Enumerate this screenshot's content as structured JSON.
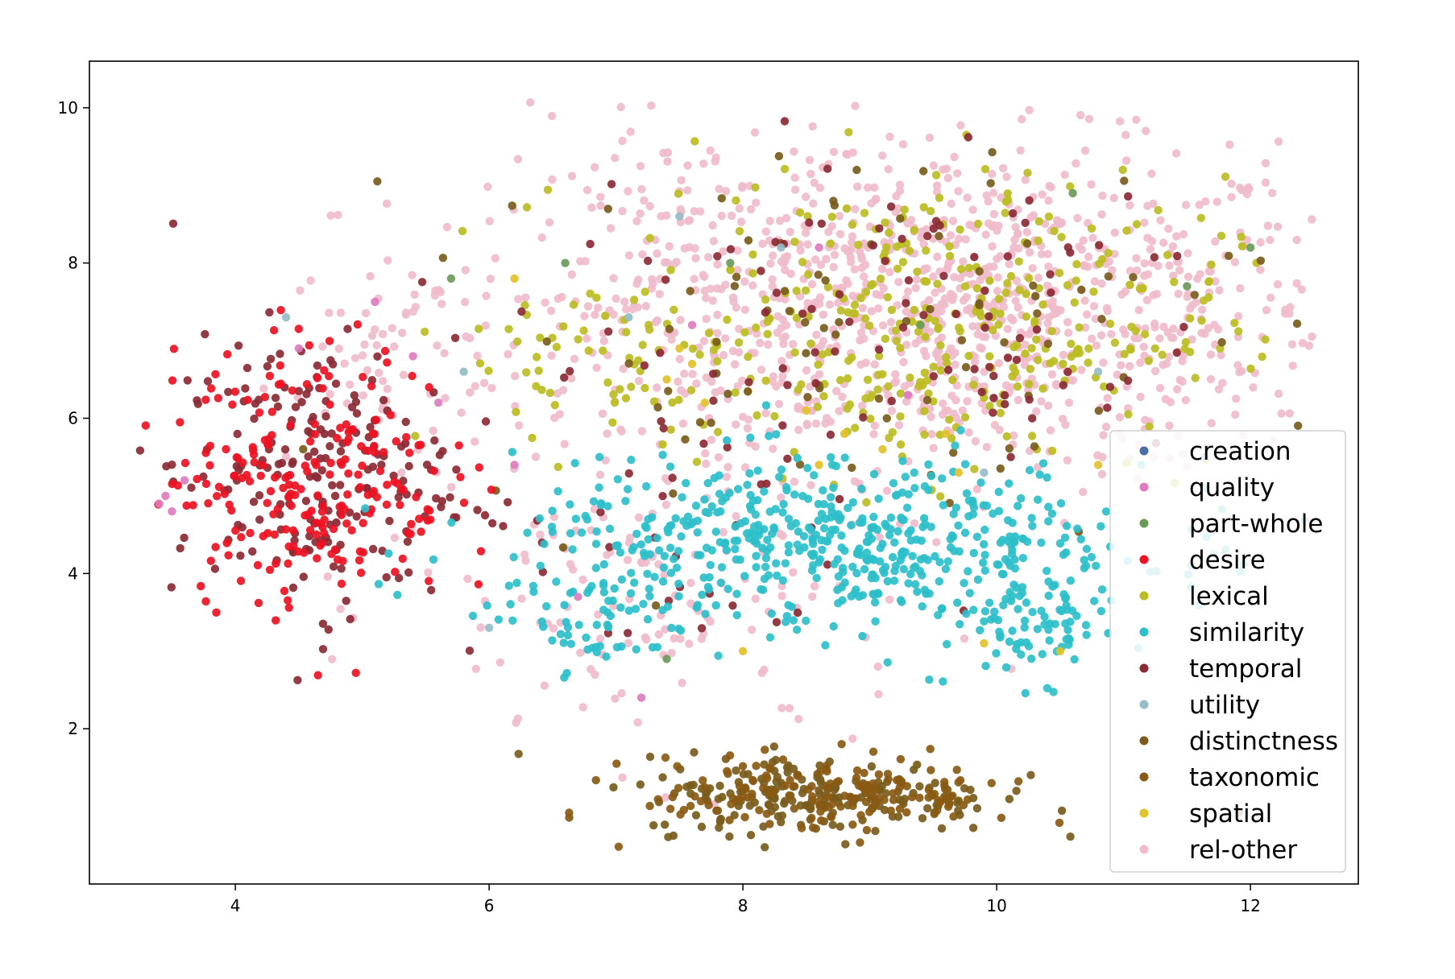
{
  "chart_data": {
    "type": "scatter",
    "title": "",
    "xlabel": "",
    "ylabel": "",
    "xlim": [
      2.85,
      12.85
    ],
    "ylim": [
      0.0,
      10.6
    ],
    "xticks": [
      4,
      6,
      8,
      10,
      12
    ],
    "yticks": [
      2,
      4,
      6,
      8,
      10
    ],
    "grid": false,
    "legend_position": "lower-right",
    "series": [
      {
        "name": "creation",
        "color": "#4a6fa5",
        "points": []
      },
      {
        "name": "quality",
        "color": "#e07bbf",
        "points": [
          [
            3.4,
            4.9
          ],
          [
            3.5,
            4.8
          ],
          [
            3.45,
            5.0
          ],
          [
            3.6,
            5.2
          ],
          [
            4.5,
            6.9
          ],
          [
            5.1,
            7.5
          ],
          [
            5.4,
            6.8
          ],
          [
            5.6,
            6.2
          ],
          [
            6.2,
            5.4
          ],
          [
            7.6,
            7.2
          ],
          [
            8.6,
            8.2
          ],
          [
            7.2,
            2.4
          ],
          [
            9.3,
            6.3
          ],
          [
            6.7,
            3.7
          ]
        ]
      },
      {
        "name": "part-whole",
        "color": "#6a9a58",
        "points": [
          [
            5.7,
            7.8
          ],
          [
            6.6,
            8.0
          ],
          [
            7.9,
            8.0
          ],
          [
            9.4,
            7.2
          ],
          [
            10.6,
            8.9
          ],
          [
            12.0,
            8.2
          ],
          [
            11.5,
            7.7
          ],
          [
            7.4,
            2.9
          ]
        ]
      },
      {
        "name": "desire",
        "color": "#ee1122",
        "points": []
      },
      {
        "name": "lexical",
        "color": "#bcbd22",
        "points": []
      },
      {
        "name": "similarity",
        "color": "#2dbfca",
        "points": []
      },
      {
        "name": "temporal",
        "color": "#8b2a34",
        "points": []
      },
      {
        "name": "utility",
        "color": "#96bcc8",
        "points": [
          [
            4.4,
            7.3
          ],
          [
            5.8,
            6.6
          ],
          [
            7.5,
            8.6
          ],
          [
            7.1,
            7.3
          ],
          [
            8.3,
            8.2
          ],
          [
            9.9,
            5.3
          ],
          [
            10.8,
            6.6
          ],
          [
            6.0,
            3.3
          ]
        ]
      },
      {
        "name": "distinctness",
        "color": "#7a5c1c",
        "points": []
      },
      {
        "name": "taxonomic",
        "color": "#8a5a14",
        "points": []
      },
      {
        "name": "spatial",
        "color": "#e2c12b",
        "points": [
          [
            7.6,
            6.7
          ],
          [
            7.4,
            6.5
          ],
          [
            7.7,
            6.2
          ],
          [
            8.8,
            5.8
          ],
          [
            9.1,
            5.6
          ],
          [
            8.6,
            5.4
          ],
          [
            8.5,
            6.1
          ],
          [
            7.5,
            6.9
          ],
          [
            9.6,
            5.8
          ],
          [
            9.7,
            5.3
          ],
          [
            10.8,
            5.4
          ],
          [
            10.5,
            3.0
          ],
          [
            9.9,
            3.1
          ],
          [
            6.2,
            7.8
          ],
          [
            8.0,
            3.0
          ]
        ]
      },
      {
        "name": "rel-other",
        "color": "#f0bccb",
        "points": []
      }
    ],
    "clusters": [
      {
        "series": "desire",
        "count": 230,
        "cx": 4.6,
        "cy": 5.3,
        "sx": 0.55,
        "sy": 0.85
      },
      {
        "series": "temporal",
        "count": 200,
        "cx": 4.6,
        "cy": 5.3,
        "sx": 0.55,
        "sy": 0.9
      },
      {
        "series": "temporal",
        "count": 90,
        "cx": 9.2,
        "cy": 7.5,
        "sx": 1.3,
        "sy": 1.1
      },
      {
        "series": "temporal",
        "count": 40,
        "cx": 7.6,
        "cy": 4.5,
        "sx": 0.9,
        "sy": 1.2
      },
      {
        "series": "similarity",
        "count": 560,
        "cx": 8.7,
        "cy": 4.35,
        "sx": 1.25,
        "sy": 0.55
      },
      {
        "series": "similarity",
        "count": 70,
        "cx": 10.3,
        "cy": 3.3,
        "sx": 0.3,
        "sy": 0.35
      },
      {
        "series": "similarity",
        "count": 40,
        "cx": 6.8,
        "cy": 3.3,
        "sx": 0.4,
        "sy": 0.35
      },
      {
        "series": "distinctness",
        "count": 200,
        "cx": 8.6,
        "cy": 1.15,
        "sx": 0.7,
        "sy": 0.25
      },
      {
        "series": "taxonomic",
        "count": 160,
        "cx": 8.7,
        "cy": 1.15,
        "sx": 0.75,
        "sy": 0.25
      },
      {
        "series": "distinctness",
        "count": 90,
        "cx": 9.0,
        "cy": 7.2,
        "sx": 1.6,
        "sy": 1.2
      },
      {
        "series": "lexical",
        "count": 360,
        "cx": 9.4,
        "cy": 7.2,
        "sx": 1.2,
        "sy": 0.95
      },
      {
        "series": "lexical",
        "count": 40,
        "cx": 6.8,
        "cy": 6.8,
        "sx": 0.5,
        "sy": 0.6
      },
      {
        "series": "rel-other",
        "count": 950,
        "cx": 9.8,
        "cy": 7.4,
        "sx": 1.45,
        "sy": 1.05
      },
      {
        "series": "rel-other",
        "count": 170,
        "cx": 7.6,
        "cy": 7.6,
        "sx": 0.8,
        "sy": 1.1
      },
      {
        "series": "rel-other",
        "count": 80,
        "cx": 5.3,
        "cy": 6.6,
        "sx": 0.45,
        "sy": 0.9
      },
      {
        "series": "rel-other",
        "count": 120,
        "cx": 7.4,
        "cy": 3.5,
        "sx": 1.0,
        "sy": 1.0
      }
    ]
  }
}
